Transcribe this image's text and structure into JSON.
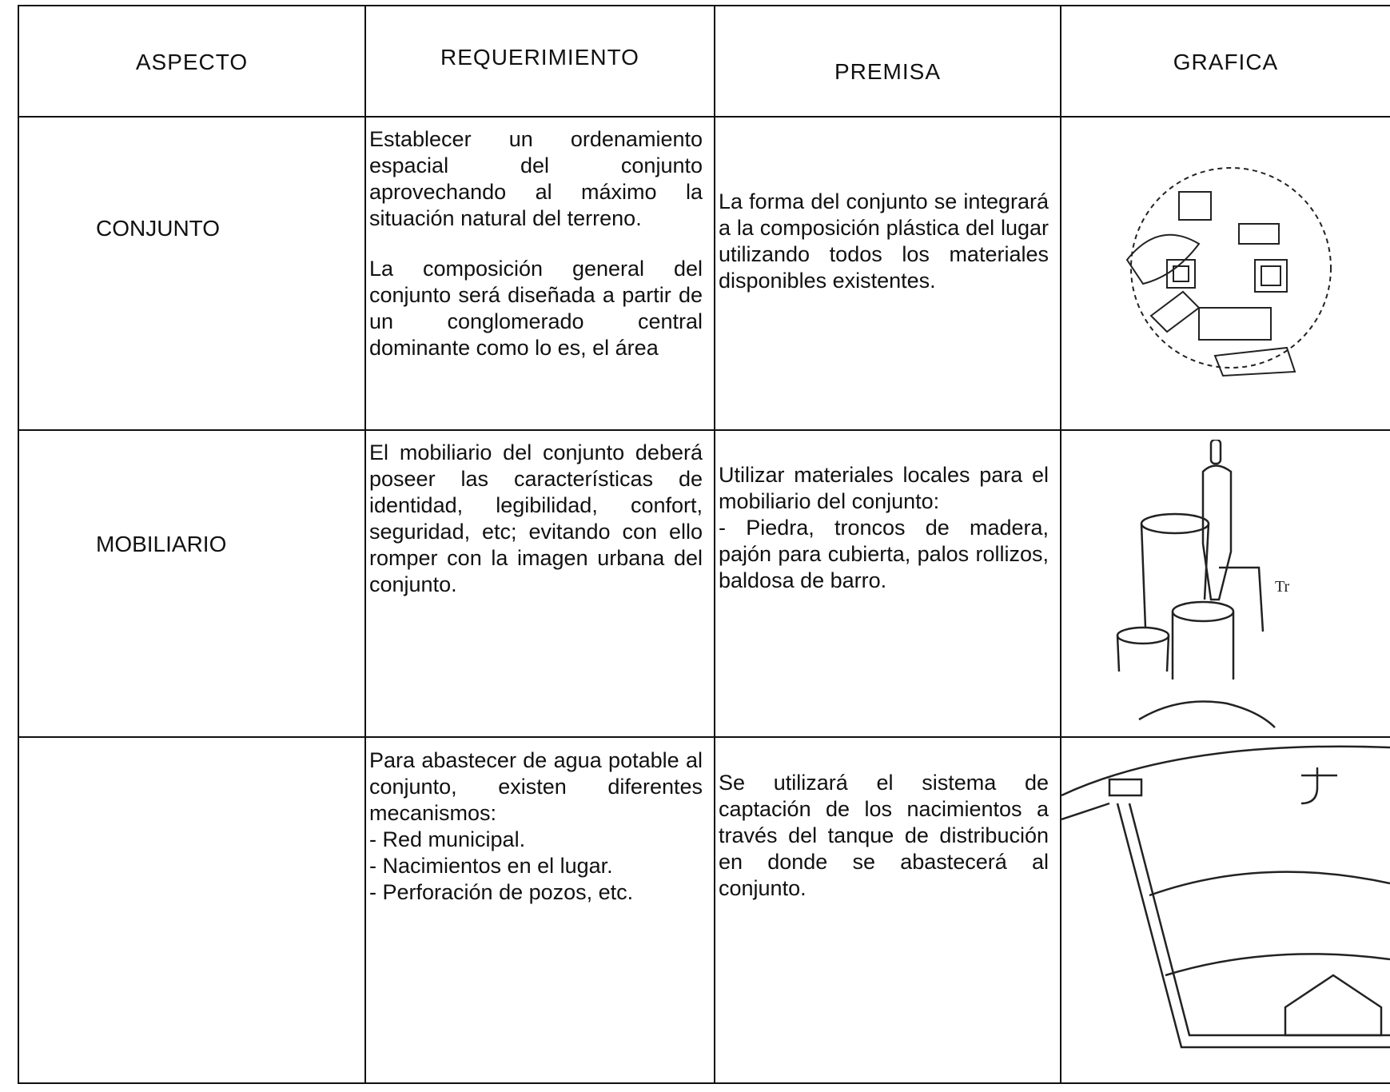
{
  "table": {
    "header": [
      "ASPECTO",
      "REQUERIMIENTO",
      "PREMISA",
      "GRAFICA"
    ],
    "rows": [
      {
        "aspecto": "CONJUNTO",
        "requerimiento": [
          "Establecer un ordenamiento espacial del conjunto aprovechando al máximo la situación natural del terreno.",
          "La composición general del conjunto será diseñada a partir de un conglomerado central dominante como lo es, el área"
        ],
        "premisa": [
          "La forma del conjunto se integrará a la composición plástica del lugar utilizando todos los materiales disponibles existentes."
        ]
      },
      {
        "aspecto": "MOBILIARIO",
        "requerimiento": [
          "El mobiliario del conjunto deberá poseer las características de identidad, legibilidad, confort, seguridad, etc; evitando con ello romper con la imagen urbana del conjunto."
        ],
        "premisa": [
          "Utilizar materiales locales para el mobiliario del conjunto:",
          "- Piedra, troncos de madera, pajón para cubierta, palos rollizos, baldosa de barro."
        ]
      },
      {
        "aspecto": "",
        "requerimiento": [
          "Para abastecer de agua potable al conjunto, existen diferentes mecanismos:",
          "- Red municipal.",
          "- Nacimientos en el lugar.",
          "- Perforación de pozos, etc."
        ],
        "premisa": [
          "Se utilizará el sistema de captación de los nacimientos a través del tanque de distribución en donde se abastecerá al conjunto."
        ]
      }
    ]
  }
}
